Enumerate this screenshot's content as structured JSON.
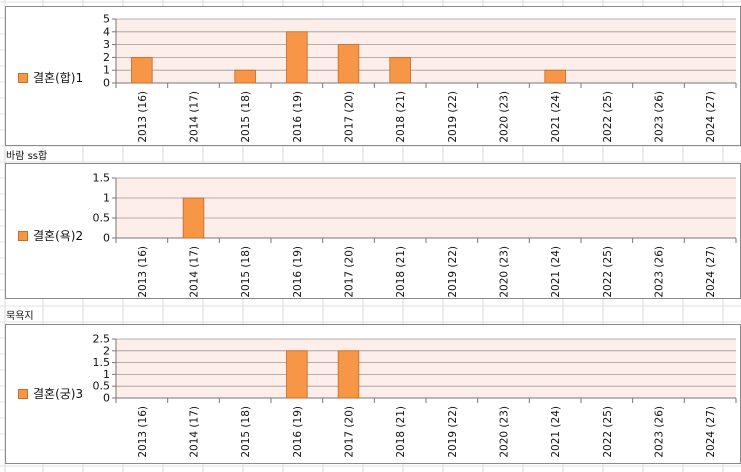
{
  "labels": [
    "바람 ss합",
    "묵욕지"
  ],
  "chart_data": [
    {
      "type": "bar",
      "categories": [
        "2013 (16)",
        "2014 (17)",
        "2015 (18)",
        "2016 (19)",
        "2017 (20)",
        "2018 (21)",
        "2019 (22)",
        "2020 (23)",
        "2021 (24)",
        "2022 (25)",
        "2023 (26)",
        "2024 (27)"
      ],
      "series": [
        {
          "name": "결혼(합)1",
          "values": [
            2,
            0,
            1,
            4,
            3,
            2,
            0,
            0,
            1,
            0,
            0,
            0
          ],
          "color": "#f79646"
        }
      ],
      "yticks": [
        "0",
        "1",
        "2",
        "3",
        "4",
        "5"
      ],
      "ylim": [
        0,
        5
      ],
      "grid": true,
      "legend": "left"
    },
    {
      "type": "bar",
      "categories": [
        "2013 (16)",
        "2014 (17)",
        "2015 (18)",
        "2016 (19)",
        "2017 (20)",
        "2018 (21)",
        "2019 (22)",
        "2020 (23)",
        "2021 (24)",
        "2022 (25)",
        "2023 (26)",
        "2024 (27)"
      ],
      "series": [
        {
          "name": "결혼(욕)2",
          "values": [
            0,
            1,
            0,
            0,
            0,
            0,
            0,
            0,
            0,
            0,
            0,
            0
          ],
          "color": "#f79646"
        }
      ],
      "yticks": [
        "0",
        "0.5",
        "1",
        "1.5"
      ],
      "ylim": [
        0,
        1.5
      ],
      "grid": true,
      "legend": "left"
    },
    {
      "type": "bar",
      "categories": [
        "2013 (16)",
        "2014 (17)",
        "2015 (18)",
        "2016 (19)",
        "2017 (20)",
        "2018 (21)",
        "2019 (22)",
        "2020 (23)",
        "2021 (24)",
        "2022 (25)",
        "2023 (26)",
        "2024 (27)"
      ],
      "series": [
        {
          "name": "결혼(궁)3",
          "values": [
            0,
            0,
            0,
            2,
            2,
            0,
            0,
            0,
            0,
            0,
            0,
            0
          ],
          "color": "#f79646"
        }
      ],
      "yticks": [
        "0",
        "0.5",
        "1",
        "1.5",
        "2",
        "2.5"
      ],
      "ylim": [
        0,
        2.5
      ],
      "grid": true,
      "legend": "left"
    }
  ]
}
